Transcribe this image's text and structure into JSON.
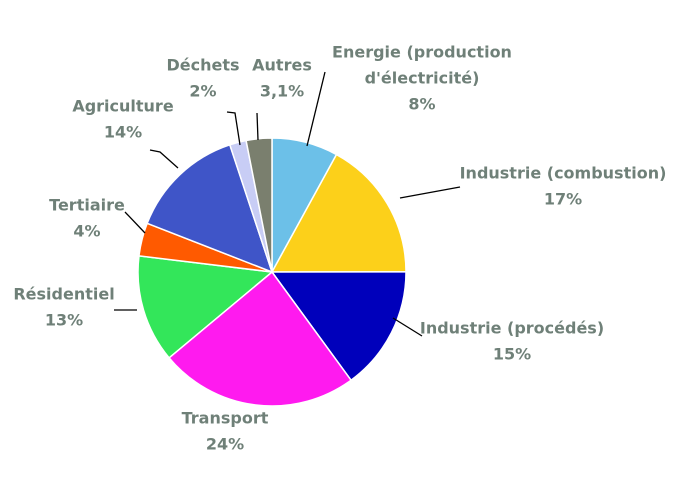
{
  "chart_data": {
    "type": "pie",
    "title": "",
    "slices": [
      {
        "name": "Energie (production d'électricité)",
        "label_lines": [
          "Energie (production",
          "d'électricité)"
        ],
        "pct_label": "8%",
        "value": 8,
        "color": "#6cc0e8"
      },
      {
        "name": "Industrie (combustion)",
        "label_lines": [
          "Industrie (combustion)"
        ],
        "pct_label": "17%",
        "value": 17,
        "color": "#fcd01a"
      },
      {
        "name": "Industrie (procédés)",
        "label_lines": [
          "Industrie (procédés)"
        ],
        "pct_label": "15%",
        "value": 15,
        "color": "#0000bb"
      },
      {
        "name": "Transport",
        "label_lines": [
          "Transport"
        ],
        "pct_label": "24%",
        "value": 24,
        "color": "#ff1aef"
      },
      {
        "name": "Résidentiel",
        "label_lines": [
          "Résidentiel"
        ],
        "pct_label": "13%",
        "value": 13,
        "color": "#33e65a"
      },
      {
        "name": "Tertiaire",
        "label_lines": [
          "Tertiaire"
        ],
        "pct_label": "4%",
        "value": 4,
        "color": "#ff5a00"
      },
      {
        "name": "Agriculture",
        "label_lines": [
          "Agriculture"
        ],
        "pct_label": "14%",
        "value": 14,
        "color": "#3f55c8"
      },
      {
        "name": "Déchets",
        "label_lines": [
          "Déchets"
        ],
        "pct_label": "2%",
        "value": 2,
        "color": "#c8cdf5"
      },
      {
        "name": "Autres",
        "label_lines": [
          "Autres"
        ],
        "pct_label": "3,1%",
        "value": 3.1,
        "color": "#7a7f6e"
      }
    ],
    "start": "12 o'clock, clockwise",
    "legend": "none (labels beside slices with leader lines)"
  }
}
